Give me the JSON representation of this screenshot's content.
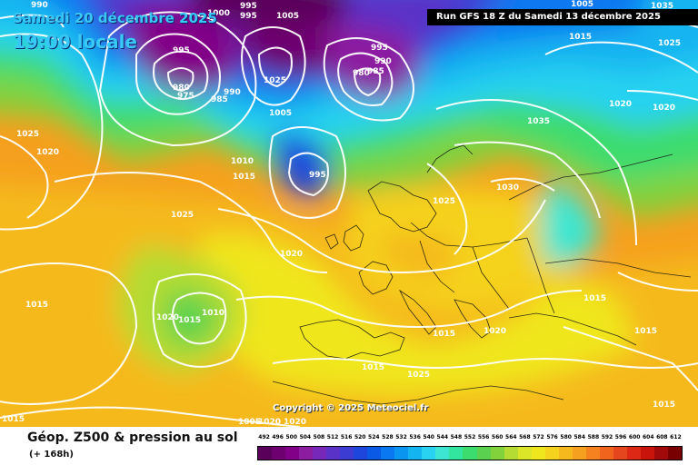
{
  "header": {
    "date": "Samedi 20 décembre 2025",
    "time": "19:00 locale",
    "run": "Run GFS 18 Z du Samedi 13 décembre 2025"
  },
  "footer": {
    "product": "Géop. Z500 & pression au sol",
    "lead_time": "(+ 168h)",
    "copyright": "Copyright © 2025 Meteociel.fr"
  },
  "legend": {
    "values": [
      "492",
      "496",
      "500",
      "504",
      "508",
      "512",
      "516",
      "520",
      "524",
      "528",
      "532",
      "536",
      "540",
      "544",
      "548",
      "552",
      "556",
      "560",
      "564",
      "568",
      "572",
      "576",
      "580",
      "584",
      "588",
      "592",
      "596",
      "600",
      "604",
      "608",
      "612"
    ],
    "colors": [
      "#5a005a",
      "#6e0070",
      "#820088",
      "#8c1ca0",
      "#7828b8",
      "#5a32c8",
      "#3c3cd2",
      "#1e46dc",
      "#0a5ae6",
      "#0a78f0",
      "#0a96f0",
      "#14b4f0",
      "#28d2f0",
      "#3ce6d2",
      "#32e6a0",
      "#3cdc6e",
      "#5ad250",
      "#82d23c",
      "#b4dc32",
      "#dce628",
      "#f0e61e",
      "#f5d21e",
      "#f5b91e",
      "#f5a01e",
      "#f5821e",
      "#f0641e",
      "#e6461e",
      "#dc2814",
      "#c8140a",
      "#a00a0a",
      "#780000"
    ]
  },
  "isobar_labels": [
    {
      "text": "990"
    },
    {
      "text": "1000"
    },
    {
      "text": "995"
    },
    {
      "text": "995"
    },
    {
      "text": "1005"
    },
    {
      "text": "1035"
    },
    {
      "text": "1005"
    },
    {
      "text": "995"
    },
    {
      "text": "1015"
    },
    {
      "text": "1025"
    },
    {
      "text": "980"
    },
    {
      "text": "975"
    },
    {
      "text": "985"
    },
    {
      "text": "990"
    },
    {
      "text": "1025"
    },
    {
      "text": "1005"
    },
    {
      "text": "995"
    },
    {
      "text": "990"
    },
    {
      "text": "980"
    },
    {
      "text": "985"
    },
    {
      "text": "1020"
    },
    {
      "text": "1020"
    },
    {
      "text": "1035"
    },
    {
      "text": "1025"
    },
    {
      "text": "1020"
    },
    {
      "text": "1010"
    },
    {
      "text": "1015"
    },
    {
      "text": "995"
    },
    {
      "text": "1030"
    },
    {
      "text": "1025"
    },
    {
      "text": "1025"
    },
    {
      "text": "1020"
    },
    {
      "text": "1015"
    },
    {
      "text": "1010"
    },
    {
      "text": "1015"
    },
    {
      "text": "1020"
    },
    {
      "text": "1015"
    },
    {
      "text": "1015"
    },
    {
      "text": "1015"
    },
    {
      "text": "1025"
    },
    {
      "text": "1015"
    },
    {
      "text": "1020"
    },
    {
      "text": "1015"
    },
    {
      "text": "1020"
    },
    {
      "text": "1020"
    },
    {
      "text": "1015"
    },
    {
      "text": "1005"
    }
  ]
}
